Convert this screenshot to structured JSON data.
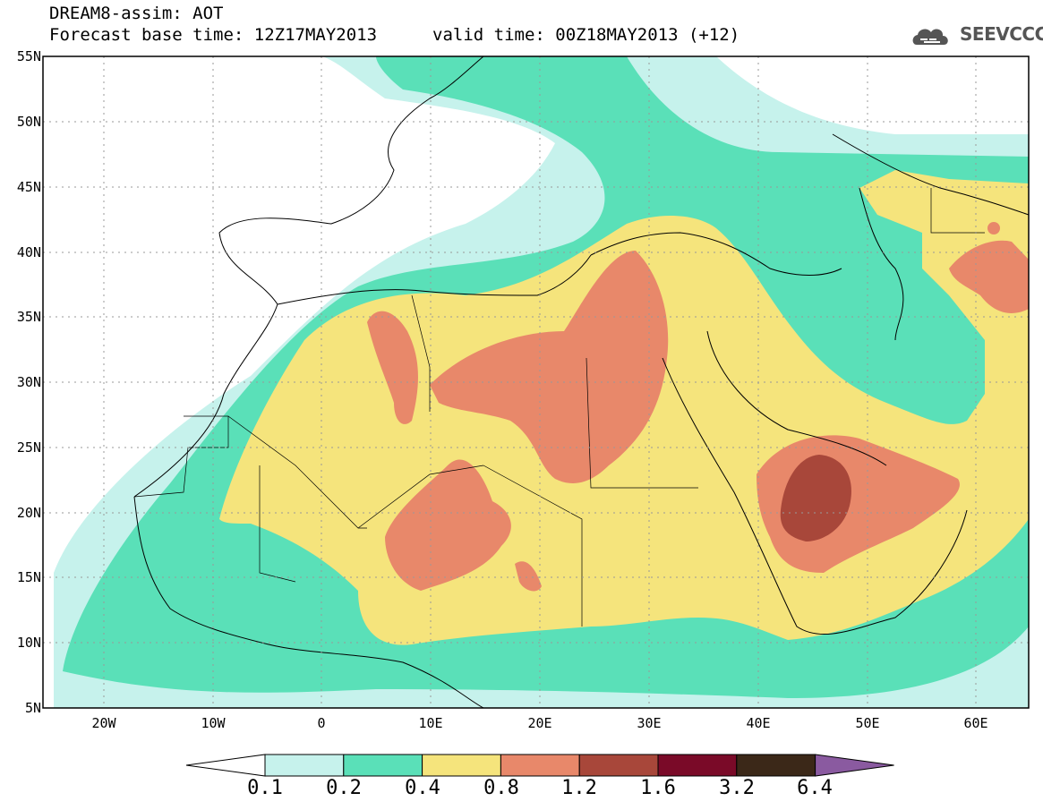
{
  "header": {
    "title": "DREAM8-assim: AOT",
    "base_time": "Forecast base time: 12Z17MAY2013",
    "valid_time": "valid time: 00Z18MAY2013 (+12)",
    "logo_text": "SEEVCCC"
  },
  "map": {
    "lat_labels": [
      "55N",
      "50N",
      "45N",
      "40N",
      "35N",
      "30N",
      "25N",
      "20N",
      "15N",
      "10N",
      "5N"
    ],
    "lon_labels": [
      "20W",
      "10W",
      "0",
      "10E",
      "20E",
      "30E",
      "40E",
      "50E",
      "60E"
    ],
    "lat_range": [
      5,
      55
    ],
    "lon_range": [
      -25,
      65
    ]
  },
  "colorbar": {
    "labels": [
      "0.1",
      "0.2",
      "0.4",
      "0.8",
      "1.2",
      "1.6",
      "3.2",
      "6.4"
    ],
    "colors": [
      "#c6f2ec",
      "#5ae0b8",
      "#f5e47c",
      "#e8886a",
      "#a8473a",
      "#7a0a28",
      "#3b2818",
      "#8a5aa0"
    ],
    "under_color": "#ffffff"
  }
}
